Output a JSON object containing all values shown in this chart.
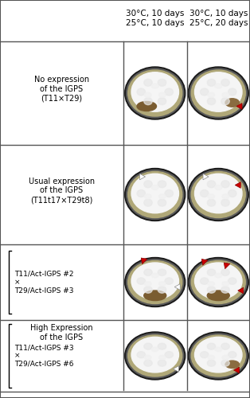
{
  "title": "",
  "background_color": "#ffffff",
  "col_headers": [
    "30°C, 10 days\n25°C, 10 days",
    "30°C, 10 days\n25°C, 20 days"
  ],
  "row_labels": [
    "No expression\nof the IGPS\n(T11×T29)",
    "Usual expression\nof the IGPS\n(T11t17×T29t8)",
    "T11/Act-IGPS #2\n×\nT29/Act-IGPS #3\n\nHigh Expression\nof the IGPS\n\nT11/Act-IGPS #3\n×\nT29/Act-IGPS #6"
  ],
  "row_label_row1": "No expression\nof the IGPS\n(T11×T29)",
  "row_label_row2": "Usual expression\nof the IGPS\n(T11t17×T29t8)",
  "row_label_row3_top": "T11/Act-IGPS #2\n×\nT29/Act-IGPS #3",
  "row_label_row3_mid": "High Expression\nof the IGPS",
  "row_label_row4": "T11/Act-IGPS #3\n×\nT29/Act-IGPS #6",
  "plate_color_dark": "#1a1a1a",
  "plate_color_mid": "#3a3a3a",
  "plate_color_rim": "#5a5a5a",
  "plate_inner": "#e8e8e8",
  "fungal_color": "#f0f0f0",
  "border_color": "#888888",
  "arrow_red": "#cc0000",
  "arrow_white": "#ffffff",
  "separator_color": "#555555",
  "header_fontsize": 7.5,
  "label_fontsize": 7.0,
  "fig_width": 3.14,
  "fig_height": 5.0
}
